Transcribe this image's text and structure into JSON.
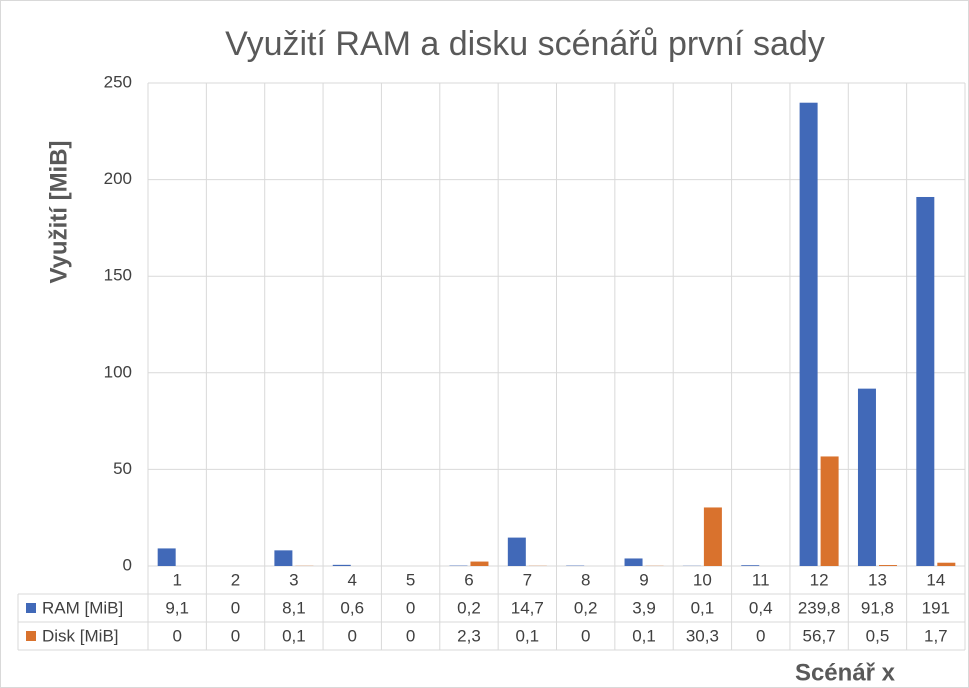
{
  "chart_data": {
    "type": "bar",
    "title": "Využití RAM a disku scénářů první sady",
    "y_label": "Využití [MiB]",
    "x_label": "Scénář x",
    "categories": [
      "1",
      "2",
      "3",
      "4",
      "5",
      "6",
      "7",
      "8",
      "9",
      "10",
      "11",
      "12",
      "13",
      "14"
    ],
    "series": [
      {
        "name": "RAM [MiB]",
        "color": "#4169b8",
        "values": [
          9.1,
          0,
          8.1,
          0.6,
          0,
          0.2,
          14.7,
          0.2,
          3.9,
          0.1,
          0.4,
          239.8,
          91.8,
          191
        ],
        "value_labels": [
          "9,1",
          "0",
          "8,1",
          "0,6",
          "0",
          "0,2",
          "14,7",
          "0,2",
          "3,9",
          "0,1",
          "0,4",
          "239,8",
          "91,8",
          "191"
        ]
      },
      {
        "name": "Disk [MiB]",
        "color": "#d9722d",
        "values": [
          0,
          0,
          0.1,
          0,
          0,
          2.3,
          0.1,
          0,
          0.1,
          30.3,
          0,
          56.7,
          0.5,
          1.7
        ],
        "value_labels": [
          "0",
          "0",
          "0,1",
          "0",
          "0",
          "2,3",
          "0,1",
          "0",
          "0,1",
          "30,3",
          "0",
          "56,7",
          "0,5",
          "1,7"
        ]
      }
    ],
    "ylim": [
      0,
      250
    ],
    "yticks": [
      0,
      50,
      100,
      150,
      200,
      250
    ],
    "grid": true
  }
}
